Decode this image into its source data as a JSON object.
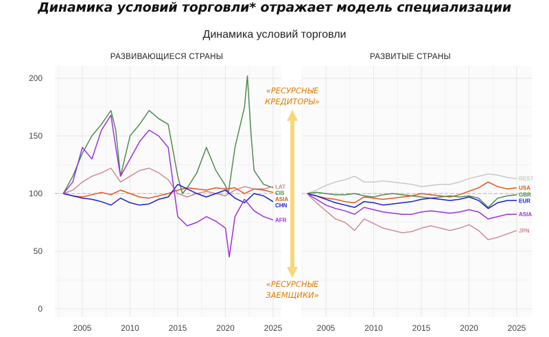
{
  "headline": "Динамика условий торговли* отражает модель специализации",
  "chart_data": {
    "type": "line",
    "title": "Динамика условий торговли",
    "baseline": 100,
    "ylim": [
      0,
      210
    ],
    "yticks": [
      0,
      50,
      100,
      150,
      200
    ],
    "xlim": [
      2002,
      2026
    ],
    "xticks": [
      2005,
      2010,
      2015,
      2020,
      2025
    ],
    "grid": true,
    "panels": [
      {
        "title": "РАЗВИВАЮЩИЕСЯ СТРАНЫ",
        "series": [
          {
            "name": "CIS",
            "color": "#4f8a4f",
            "x": [
              2003,
              2004,
              2005,
              2006,
              2007,
              2008,
              2008.5,
              2009,
              2010,
              2011,
              2012,
              2013,
              2014,
              2015,
              2015.5,
              2016,
              2017,
              2018,
              2019,
              2020,
              2020.3,
              2021,
              2022,
              2022.3,
              2022.7,
              2023,
              2024,
              2025
            ],
            "y": [
              100,
              115,
              135,
              150,
              160,
              172,
              155,
              115,
              150,
              160,
              172,
              165,
              160,
              115,
              100,
              105,
              118,
              140,
              120,
              107,
              100,
              140,
              175,
              202,
              150,
              120,
              108,
              105
            ]
          },
          {
            "name": "LAT",
            "color": "#d08a95",
            "x": [
              2003,
              2004,
              2005,
              2006,
              2007,
              2008,
              2009,
              2010,
              2011,
              2012,
              2013,
              2014,
              2015,
              2016,
              2017,
              2018,
              2019,
              2020,
              2021,
              2022,
              2023,
              2024,
              2025
            ],
            "y": [
              100,
              103,
              110,
              115,
              118,
              122,
              110,
              115,
              120,
              122,
              118,
              112,
              100,
              97,
              100,
              102,
              100,
              98,
              103,
              106,
              104,
              104,
              106
            ]
          },
          {
            "name": "ASIA",
            "color": "#e8521c",
            "x": [
              2003,
              2004,
              2005,
              2006,
              2007,
              2008,
              2009,
              2010,
              2011,
              2012,
              2013,
              2014,
              2015,
              2016,
              2017,
              2018,
              2019,
              2020,
              2021,
              2022,
              2023,
              2024,
              2025
            ],
            "y": [
              100,
              98,
              97,
              99,
              101,
              99,
              103,
              100,
              97,
              96,
              98,
              100,
              103,
              105,
              104,
              103,
              105,
              104,
              105,
              100,
              104,
              103,
              101
            ]
          },
          {
            "name": "CHN",
            "color": "#1a1adb",
            "x": [
              2003,
              2004,
              2005,
              2006,
              2007,
              2008,
              2009,
              2010,
              2011,
              2012,
              2013,
              2014,
              2015,
              2016,
              2017,
              2018,
              2019,
              2020,
              2021,
              2022,
              2023,
              2024,
              2025
            ],
            "y": [
              100,
              98,
              96,
              95,
              93,
              90,
              96,
              92,
              90,
              91,
              95,
              97,
              108,
              104,
              100,
              97,
              100,
              103,
              96,
              92,
              100,
              98,
              93
            ]
          },
          {
            "name": "AFR",
            "color": "#9b30e0",
            "x": [
              2003,
              2004,
              2005,
              2006,
              2007,
              2008,
              2008.5,
              2009,
              2010,
              2011,
              2012,
              2013,
              2014,
              2015,
              2016,
              2017,
              2018,
              2019,
              2020,
              2020.4,
              2021,
              2022,
              2023,
              2024,
              2025
            ],
            "y": [
              100,
              110,
              140,
              130,
              155,
              168,
              140,
              115,
              130,
              145,
              155,
              150,
              140,
              80,
              72,
              75,
              80,
              76,
              70,
              45,
              80,
              95,
              85,
              80,
              77
            ]
          }
        ]
      },
      {
        "title": "РАЗВИТЫЕ СТРАНЫ",
        "series": [
          {
            "name": "REST",
            "color": "#c8c8c8",
            "x": [
              2003,
              2004,
              2005,
              2006,
              2007,
              2008,
              2009,
              2010,
              2011,
              2012,
              2013,
              2014,
              2015,
              2016,
              2017,
              2018,
              2019,
              2020,
              2021,
              2022,
              2023,
              2024,
              2025
            ],
            "y": [
              100,
              103,
              107,
              110,
              112,
              115,
              110,
              110,
              111,
              110,
              109,
              108,
              106,
              107,
              108,
              108,
              110,
              113,
              115,
              117,
              116,
              114,
              113
            ]
          },
          {
            "name": "USA",
            "color": "#e8521c",
            "x": [
              2003,
              2004,
              2005,
              2006,
              2007,
              2008,
              2009,
              2010,
              2011,
              2012,
              2013,
              2014,
              2015,
              2016,
              2017,
              2018,
              2019,
              2020,
              2021,
              2022,
              2023,
              2024,
              2025
            ],
            "y": [
              100,
              98,
              96,
              95,
              93,
              92,
              97,
              96,
              95,
              96,
              97,
              98,
              100,
              99,
              98,
              97,
              99,
              102,
              105,
              110,
              106,
              104,
              105
            ]
          },
          {
            "name": "GBR",
            "color": "#4f8a4f",
            "x": [
              2003,
              2004,
              2005,
              2006,
              2007,
              2008,
              2009,
              2010,
              2011,
              2012,
              2013,
              2014,
              2015,
              2016,
              2017,
              2018,
              2019,
              2020,
              2021,
              2022,
              2023,
              2024,
              2025
            ],
            "y": [
              100,
              101,
              100,
              99,
              99,
              100,
              98,
              97,
              99,
              100,
              99,
              98,
              97,
              96,
              97,
              98,
              97,
              98,
              96,
              88,
              96,
              98,
              99
            ]
          },
          {
            "name": "EUR",
            "color": "#1a1adb",
            "x": [
              2003,
              2004,
              2005,
              2006,
              2007,
              2008,
              2009,
              2010,
              2011,
              2012,
              2013,
              2014,
              2015,
              2016,
              2017,
              2018,
              2019,
              2020,
              2021,
              2022,
              2023,
              2024,
              2025
            ],
            "y": [
              100,
              98,
              95,
              92,
              90,
              88,
              93,
              92,
              90,
              91,
              92,
              93,
              95,
              96,
              95,
              94,
              95,
              97,
              94,
              87,
              92,
              94,
              94
            ]
          },
          {
            "name": "ASIA",
            "color": "#9b30e0",
            "x": [
              2003,
              2004,
              2005,
              2006,
              2007,
              2008,
              2009,
              2010,
              2011,
              2012,
              2013,
              2014,
              2015,
              2016,
              2017,
              2018,
              2019,
              2020,
              2021,
              2022,
              2023,
              2024,
              2025
            ],
            "y": [
              100,
              95,
              90,
              87,
              85,
              82,
              88,
              86,
              84,
              83,
              82,
              82,
              84,
              85,
              84,
              83,
              84,
              86,
              84,
              78,
              80,
              82,
              82
            ]
          },
          {
            "name": "JPN",
            "color": "#d08a95",
            "x": [
              2003,
              2004,
              2005,
              2006,
              2007,
              2008,
              2009,
              2010,
              2011,
              2012,
              2013,
              2014,
              2015,
              2016,
              2017,
              2018,
              2019,
              2020,
              2021,
              2022,
              2023,
              2024,
              2025
            ],
            "y": [
              100,
              92,
              85,
              78,
              75,
              68,
              78,
              74,
              70,
              68,
              66,
              67,
              70,
              72,
              70,
              68,
              70,
              73,
              68,
              60,
              62,
              65,
              68
            ]
          }
        ]
      }
    ],
    "annotations": {
      "top": [
        "«РЕСУРСНЫЕ",
        "КРЕДИТОРЫ»"
      ],
      "bottom": [
        "«РЕСУРСНЫЕ",
        "ЗАЕМЩИКИ»"
      ],
      "arrow_color": "#f8d77a",
      "text_color": "#e07b00"
    }
  }
}
